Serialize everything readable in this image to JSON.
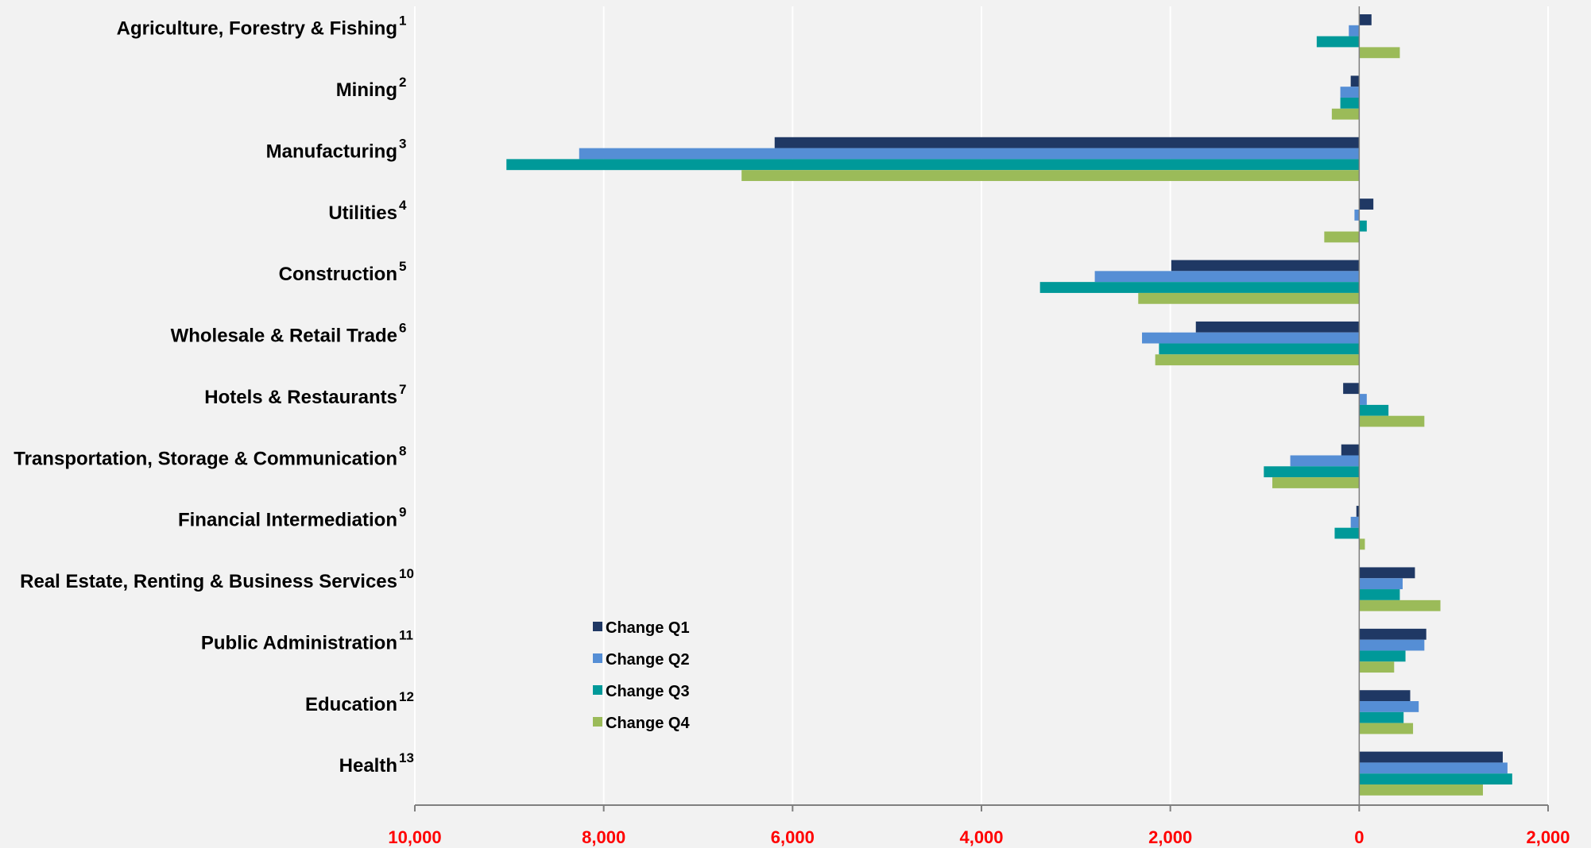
{
  "chart_data": {
    "type": "bar",
    "orientation": "horizontal",
    "x_axis_reversed": true,
    "xlim": [
      -2000,
      10000
    ],
    "x_tick_values": [
      10000,
      8000,
      6000,
      4000,
      2000,
      0,
      -2000
    ],
    "x_tick_labels": [
      "10,000",
      "8,000",
      "6,000",
      "4,000",
      "2,000",
      "0",
      "2,000"
    ],
    "grid": "vertical",
    "legend_position": "bottom-center",
    "categories": [
      {
        "name": "Agriculture, Forestry & Fishing",
        "note": "1"
      },
      {
        "name": "Mining",
        "note": "2"
      },
      {
        "name": "Manufacturing",
        "note": "3"
      },
      {
        "name": "Utilities",
        "note": "4"
      },
      {
        "name": "Construction",
        "note": "5"
      },
      {
        "name": "Wholesale & Retail Trade",
        "note": "6"
      },
      {
        "name": "Hotels & Restaurants",
        "note": "7"
      },
      {
        "name": "Transportation, Storage & Communication",
        "note": "8"
      },
      {
        "name": "Financial Intermediation",
        "note": "9"
      },
      {
        "name": "Real Estate, Renting & Business Services",
        "note": "10"
      },
      {
        "name": "Public Administration",
        "note": "11"
      },
      {
        "name": "Education",
        "note": "12"
      },
      {
        "name": "Health",
        "note": "13"
      }
    ],
    "series": [
      {
        "name": "Change Q1",
        "color": "#1f3864",
        "values": [
          -130,
          90,
          6190,
          -150,
          1990,
          1730,
          170,
          190,
          30,
          -590,
          -710,
          -540,
          -1520
        ]
      },
      {
        "name": "Change Q2",
        "color": "#558ed5",
        "values": [
          110,
          200,
          8260,
          50,
          2800,
          2300,
          -80,
          730,
          90,
          -460,
          -690,
          -630,
          -1570
        ]
      },
      {
        "name": "Change Q3",
        "color": "#009999",
        "values": [
          450,
          200,
          9030,
          -80,
          3380,
          2120,
          -310,
          1010,
          260,
          -430,
          -490,
          -470,
          -1620
        ]
      },
      {
        "name": "Change Q4",
        "color": "#9bbb59",
        "values": [
          -430,
          290,
          6540,
          370,
          2340,
          2160,
          -690,
          920,
          -60,
          -860,
          -370,
          -570,
          -1310
        ]
      }
    ]
  }
}
